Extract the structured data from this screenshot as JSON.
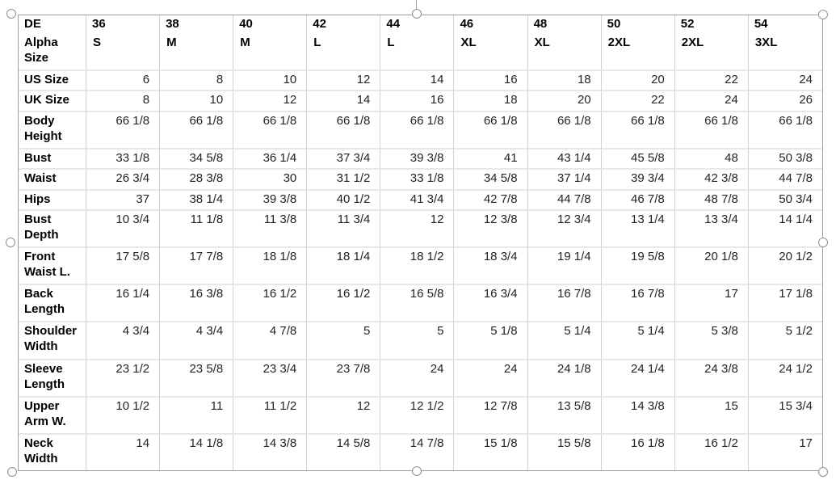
{
  "selection": {
    "handles": [
      "top-left",
      "top-center",
      "top-right",
      "middle-left",
      "middle-right",
      "bottom-left",
      "bottom-center",
      "bottom-right"
    ],
    "outline_color": "#9e9ea0",
    "handle_fill": "#ffffff",
    "handle_stroke": "#8f8f8f"
  },
  "colors": {
    "background": "#ffffff",
    "grid_vertical": "#cfd2d8",
    "grid_horizontal": "#e4e8f1",
    "header_text": "#000000",
    "value_text": "#242424"
  },
  "chart_data": {
    "type": "table",
    "header_row": [
      "DE",
      "36",
      "38",
      "40",
      "42",
      "44",
      "46",
      "48",
      "50",
      "52",
      "54"
    ],
    "rows": [
      {
        "label": "Alpha Size",
        "bold": true,
        "values": [
          "S",
          "M",
          "M",
          "L",
          "L",
          "XL",
          "XL",
          "2XL",
          "2XL",
          "3XL"
        ]
      },
      {
        "label": "US Size",
        "bold": false,
        "values": [
          "6",
          "8",
          "10",
          "12",
          "14",
          "16",
          "18",
          "20",
          "22",
          "24"
        ]
      },
      {
        "label": "UK Size",
        "bold": false,
        "values": [
          "8",
          "10",
          "12",
          "14",
          "16",
          "18",
          "20",
          "22",
          "24",
          "26"
        ]
      },
      {
        "label": "Body Height",
        "bold": false,
        "values": [
          "66 1/8",
          "66 1/8",
          "66 1/8",
          "66 1/8",
          "66 1/8",
          "66 1/8",
          "66 1/8",
          "66 1/8",
          "66 1/8",
          "66 1/8"
        ]
      },
      {
        "label": "Bust",
        "bold": false,
        "values": [
          "33 1/8",
          "34 5/8",
          "36 1/4",
          "37 3/4",
          "39 3/8",
          "41",
          "43 1/4",
          "45 5/8",
          "48",
          "50 3/8"
        ]
      },
      {
        "label": "Waist",
        "bold": false,
        "values": [
          "26 3/4",
          "28 3/8",
          "30",
          "31 1/2",
          "33 1/8",
          "34 5/8",
          "37 1/4",
          "39 3/4",
          "42 3/8",
          "44 7/8"
        ]
      },
      {
        "label": "Hips",
        "bold": false,
        "values": [
          "37",
          "38 1/4",
          "39 3/8",
          "40 1/2",
          "41 3/4",
          "42 7/8",
          "44 7/8",
          "46 7/8",
          "48 7/8",
          "50 3/4"
        ]
      },
      {
        "label": "Bust Depth",
        "bold": false,
        "values": [
          "10 3/4",
          "11 1/8",
          "11 3/8",
          "11 3/4",
          "12",
          "12 3/8",
          "12 3/4",
          "13 1/4",
          "13 3/4",
          "14 1/4"
        ]
      },
      {
        "label": "Front Waist L.",
        "bold": false,
        "values": [
          "17 5/8",
          "17 7/8",
          "18 1/8",
          "18 1/4",
          "18 1/2",
          "18 3/4",
          "19 1/4",
          "19 5/8",
          "20 1/8",
          "20 1/2"
        ]
      },
      {
        "label": "Back Length",
        "bold": false,
        "values": [
          "16 1/4",
          "16 3/8",
          "16 1/2",
          "16 1/2",
          "16 5/8",
          "16 3/4",
          "16 7/8",
          "16 7/8",
          "17",
          "17 1/8"
        ]
      },
      {
        "label": "Shoulder Width",
        "bold": false,
        "values": [
          "4 3/4",
          "4 3/4",
          "4 7/8",
          "5",
          "5",
          "5 1/8",
          "5 1/4",
          "5 1/4",
          "5 3/8",
          "5 1/2"
        ]
      },
      {
        "label": "Sleeve Length",
        "bold": false,
        "values": [
          "23 1/2",
          "23 5/8",
          "23 3/4",
          "23 7/8",
          "24",
          "24",
          "24 1/8",
          "24 1/4",
          "24 3/8",
          "24 1/2"
        ]
      },
      {
        "label": "Upper Arm W.",
        "bold": false,
        "values": [
          "10 1/2",
          "11",
          "11 1/2",
          "12",
          "12 1/2",
          "12 7/8",
          "13 5/8",
          "14 3/8",
          "15",
          "15 3/4"
        ]
      },
      {
        "label": "Neck Width",
        "bold": false,
        "values": [
          "14",
          "14 1/8",
          "14 3/8",
          "14 5/8",
          "14 7/8",
          "15 1/8",
          "15 5/8",
          "16 1/8",
          "16 1/2",
          "17"
        ]
      }
    ]
  }
}
